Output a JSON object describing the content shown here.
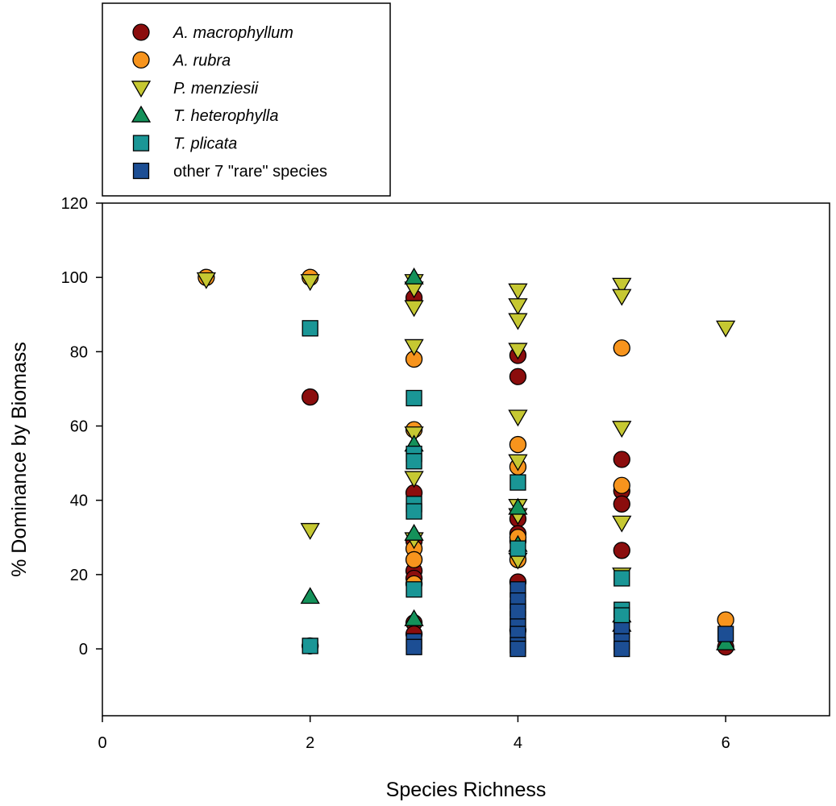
{
  "chart_data": {
    "type": "scatter",
    "xlabel": "Species Richness",
    "ylabel": "% Dominance by Biomass",
    "xlim": [
      0,
      7
    ],
    "ylim": [
      -18,
      120
    ],
    "xticks": [
      0,
      2,
      4,
      6
    ],
    "yticks": [
      0,
      20,
      40,
      60,
      80,
      100,
      120
    ],
    "grid": false,
    "legend_position": "top-left, outside above plot",
    "series": [
      {
        "name": "A. macrophyllum",
        "italic": true,
        "marker": "circle",
        "color": "#8b0d0d",
        "points": [
          [
            2,
            67.8
          ],
          [
            2,
            0.8
          ],
          [
            3,
            94.5
          ],
          [
            3,
            42
          ],
          [
            3,
            29
          ],
          [
            3,
            21
          ],
          [
            3,
            19
          ],
          [
            3,
            7
          ],
          [
            3,
            4
          ],
          [
            4,
            79
          ],
          [
            4,
            73.3
          ],
          [
            4,
            35
          ],
          [
            4,
            31
          ],
          [
            4,
            29
          ],
          [
            4,
            18
          ],
          [
            4,
            5
          ],
          [
            5,
            51
          ],
          [
            5,
            42.5
          ],
          [
            5,
            39
          ],
          [
            5,
            26.5
          ],
          [
            6,
            0.5
          ]
        ]
      },
      {
        "name": "A. rubra",
        "italic": true,
        "marker": "circle",
        "color": "#f7941d",
        "points": [
          [
            1,
            100
          ],
          [
            2,
            100
          ],
          [
            3,
            78
          ],
          [
            3,
            59
          ],
          [
            3,
            27
          ],
          [
            3,
            24
          ],
          [
            3,
            17.5
          ],
          [
            4,
            55
          ],
          [
            4,
            49
          ],
          [
            4,
            30
          ],
          [
            4,
            24
          ],
          [
            5,
            81
          ],
          [
            5,
            44
          ],
          [
            6,
            7.8
          ]
        ]
      },
      {
        "name": "P. menziesii",
        "italic": true,
        "marker": "triangle-down",
        "color": "#c6c832",
        "points": [
          [
            1,
            99.5
          ],
          [
            2,
            99
          ],
          [
            2,
            32
          ],
          [
            3,
            99
          ],
          [
            3,
            97
          ],
          [
            3,
            92
          ],
          [
            3,
            81.5
          ],
          [
            3,
            58
          ],
          [
            3,
            46
          ],
          [
            3,
            29.5
          ],
          [
            4,
            96.5
          ],
          [
            4,
            92.5
          ],
          [
            4,
            88.5
          ],
          [
            4,
            80.5
          ],
          [
            4,
            62.5
          ],
          [
            4,
            50.5
          ],
          [
            4,
            38.5
          ],
          [
            4,
            36
          ],
          [
            4,
            24
          ],
          [
            5,
            98
          ],
          [
            5,
            95
          ],
          [
            5,
            59.5
          ],
          [
            5,
            34
          ],
          [
            5,
            20
          ],
          [
            6,
            86.5
          ]
        ]
      },
      {
        "name": "T. heterophylla",
        "italic": true,
        "marker": "triangle-up",
        "color": "#14915a",
        "points": [
          [
            2,
            14
          ],
          [
            3,
            100
          ],
          [
            3,
            55
          ],
          [
            3,
            31
          ],
          [
            3,
            8
          ],
          [
            4,
            38
          ],
          [
            4,
            28
          ],
          [
            5,
            9
          ],
          [
            5,
            6.5
          ],
          [
            6,
            1.5
          ]
        ]
      },
      {
        "name": "T. plicata",
        "italic": true,
        "marker": "square",
        "color": "#1a9696",
        "points": [
          [
            2,
            86.3
          ],
          [
            2,
            0.8
          ],
          [
            3,
            67.5
          ],
          [
            3,
            52.5
          ],
          [
            3,
            50.5
          ],
          [
            3,
            39
          ],
          [
            3,
            37
          ],
          [
            3,
            16
          ],
          [
            4,
            44.8
          ],
          [
            4,
            27
          ],
          [
            4,
            11
          ],
          [
            4,
            8
          ],
          [
            5,
            19
          ],
          [
            5,
            10.5
          ],
          [
            5,
            9
          ]
        ]
      },
      {
        "name": "other 7 \"rare\" species",
        "italic": false,
        "marker": "square",
        "color": "#1c4e94",
        "points": [
          [
            3,
            2
          ],
          [
            3,
            0.5
          ],
          [
            4,
            16
          ],
          [
            4,
            13
          ],
          [
            4,
            10
          ],
          [
            4,
            6
          ],
          [
            4,
            4
          ],
          [
            4,
            1
          ],
          [
            4,
            0
          ],
          [
            5,
            5
          ],
          [
            5,
            2
          ],
          [
            5,
            0
          ],
          [
            6,
            4
          ]
        ]
      }
    ]
  }
}
